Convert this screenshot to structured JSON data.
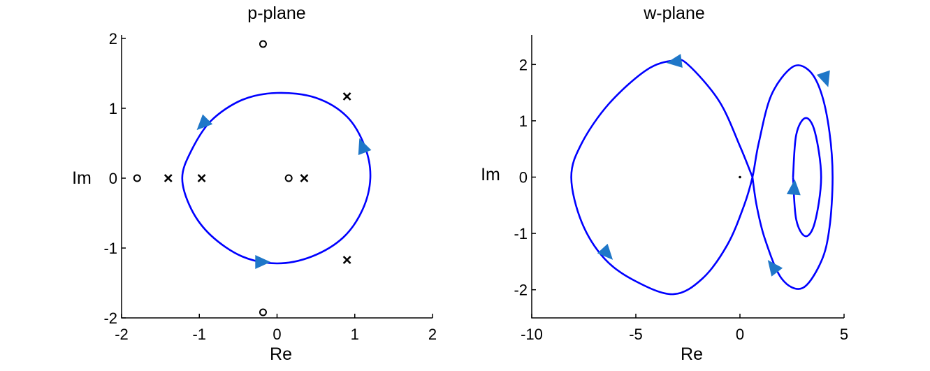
{
  "chart_data": [
    {
      "type": "scatter",
      "title": "p-plane",
      "xlabel": "Re",
      "ylabel": "Im",
      "xlim": [
        -2,
        2
      ],
      "ylim": [
        -2,
        2
      ],
      "xticks": [
        "-2",
        "-1",
        "0",
        "1",
        "2"
      ],
      "yticks": [
        "-2",
        "-1",
        "0",
        "1",
        "2"
      ],
      "grid": false,
      "contour": {
        "shape": "closed-curve",
        "color": "#0000ff",
        "direction": "clockwise",
        "points": [
          [
            1.2,
            0.0
          ],
          [
            1.13,
            0.45
          ],
          [
            0.9,
            0.88
          ],
          [
            0.5,
            1.15
          ],
          [
            0.0,
            1.22
          ],
          [
            -0.45,
            1.12
          ],
          [
            -0.85,
            0.82
          ],
          [
            -1.1,
            0.4
          ],
          [
            -1.22,
            0.0
          ],
          [
            -1.1,
            -0.45
          ],
          [
            -0.85,
            -0.82
          ],
          [
            -0.45,
            -1.12
          ],
          [
            0.0,
            -1.22
          ],
          [
            0.45,
            -1.12
          ],
          [
            0.85,
            -0.85
          ],
          [
            1.1,
            -0.45
          ]
        ],
        "arrows": [
          [
            -0.95,
            0.78
          ],
          [
            1.1,
            0.45
          ],
          [
            -0.2,
            -1.2
          ]
        ]
      },
      "poles": [
        [
          -1.4,
          0
        ],
        [
          -0.97,
          0
        ],
        [
          0.35,
          0
        ],
        [
          0.9,
          1.17
        ],
        [
          0.9,
          -1.17
        ]
      ],
      "zeros": [
        [
          -1.8,
          0
        ],
        [
          0.15,
          0
        ],
        [
          -0.18,
          1.92
        ],
        [
          -0.18,
          -1.92
        ]
      ],
      "marker_legend": {
        "poles": "x",
        "zeros": "o"
      }
    },
    {
      "type": "line",
      "title": "w-plane",
      "xlabel": "Re",
      "ylabel": "Im",
      "xlim": [
        -10,
        5
      ],
      "ylim": [
        -2.5,
        2.5
      ],
      "xticks": [
        "-10",
        "-5",
        "0",
        "5"
      ],
      "yticks": [
        "-2",
        "-1",
        "0",
        "1",
        "2"
      ],
      "grid": false,
      "origin_marker": [
        0,
        0
      ],
      "curve": {
        "color": "#0000ff",
        "points": [
          [
            0.6,
            0.0
          ],
          [
            0.0,
            0.55
          ],
          [
            -1.0,
            1.35
          ],
          [
            -2.5,
            2.0
          ],
          [
            -3.2,
            2.07
          ],
          [
            -4.5,
            1.9
          ],
          [
            -6.3,
            1.3
          ],
          [
            -7.6,
            0.6
          ],
          [
            -8.1,
            0.0
          ],
          [
            -7.6,
            -0.8
          ],
          [
            -6.5,
            -1.45
          ],
          [
            -5.0,
            -1.85
          ],
          [
            -3.2,
            -2.08
          ],
          [
            -1.8,
            -1.8
          ],
          [
            -0.6,
            -1.2
          ],
          [
            0.2,
            -0.5
          ],
          [
            0.6,
            0.0
          ],
          [
            0.9,
            0.6
          ],
          [
            1.5,
            1.45
          ],
          [
            2.5,
            1.95
          ],
          [
            3.3,
            1.9
          ],
          [
            3.9,
            1.5
          ],
          [
            4.3,
            0.8
          ],
          [
            4.45,
            0.0
          ],
          [
            4.3,
            -0.9
          ],
          [
            3.9,
            -1.5
          ],
          [
            3.0,
            -1.97
          ],
          [
            2.0,
            -1.8
          ],
          [
            1.2,
            -1.1
          ],
          [
            0.8,
            -0.5
          ],
          [
            0.6,
            0.0
          ]
        ],
        "inner_loop": [
          [
            2.55,
            0.0
          ],
          [
            2.7,
            0.75
          ],
          [
            3.15,
            1.05
          ],
          [
            3.6,
            0.8
          ],
          [
            3.9,
            0.0
          ],
          [
            3.6,
            -0.8
          ],
          [
            3.15,
            -1.05
          ],
          [
            2.7,
            -0.75
          ],
          [
            2.55,
            0.0
          ]
        ],
        "arrows": [
          [
            -3.1,
            2.05
          ],
          [
            4.1,
            1.75
          ],
          [
            -6.4,
            -1.35
          ],
          [
            1.6,
            -1.6
          ],
          [
            2.6,
            -0.2
          ]
        ]
      }
    }
  ]
}
